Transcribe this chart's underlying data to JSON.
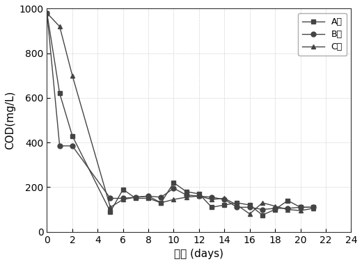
{
  "series_A": {
    "x": [
      0,
      1,
      2,
      5,
      6,
      7,
      8,
      9,
      10,
      11,
      12,
      13,
      14,
      15,
      16,
      17,
      18,
      19,
      20,
      21
    ],
    "y": [
      980,
      620,
      430,
      90,
      190,
      150,
      150,
      130,
      220,
      180,
      170,
      110,
      120,
      130,
      120,
      75,
      100,
      140,
      110,
      110
    ],
    "label": "A组",
    "marker": "s",
    "color": "#444444"
  },
  "series_B": {
    "x": [
      0,
      1,
      2,
      5,
      6,
      7,
      8,
      9,
      10,
      11,
      12,
      13,
      14,
      15,
      16,
      17,
      18,
      19,
      20,
      21
    ],
    "y": [
      980,
      385,
      385,
      150,
      150,
      155,
      160,
      155,
      195,
      165,
      160,
      155,
      145,
      110,
      110,
      100,
      105,
      105,
      110,
      110
    ],
    "label": "B组",
    "marker": "o",
    "color": "#444444"
  },
  "series_C": {
    "x": [
      0,
      1,
      2,
      5,
      6,
      7,
      8,
      9,
      10,
      11,
      12,
      13,
      14,
      15,
      16,
      17,
      18,
      19,
      20,
      21
    ],
    "y": [
      980,
      920,
      700,
      110,
      145,
      155,
      160,
      130,
      145,
      155,
      160,
      145,
      150,
      120,
      80,
      130,
      115,
      100,
      95,
      105
    ],
    "label": "C组",
    "marker": "^",
    "color": "#444444"
  },
  "xlabel": "天数 (days)",
  "ylabel": "COD(mg/L)",
  "xlim": [
    0,
    24
  ],
  "ylim": [
    0,
    1000
  ],
  "xticks": [
    0,
    2,
    4,
    6,
    8,
    10,
    12,
    14,
    16,
    18,
    20,
    22,
    24
  ],
  "yticks": [
    0,
    200,
    400,
    600,
    800,
    1000
  ],
  "legend_loc": "upper right",
  "background_color": "#ffffff",
  "fontsize_label": 11,
  "fontsize_tick": 10
}
